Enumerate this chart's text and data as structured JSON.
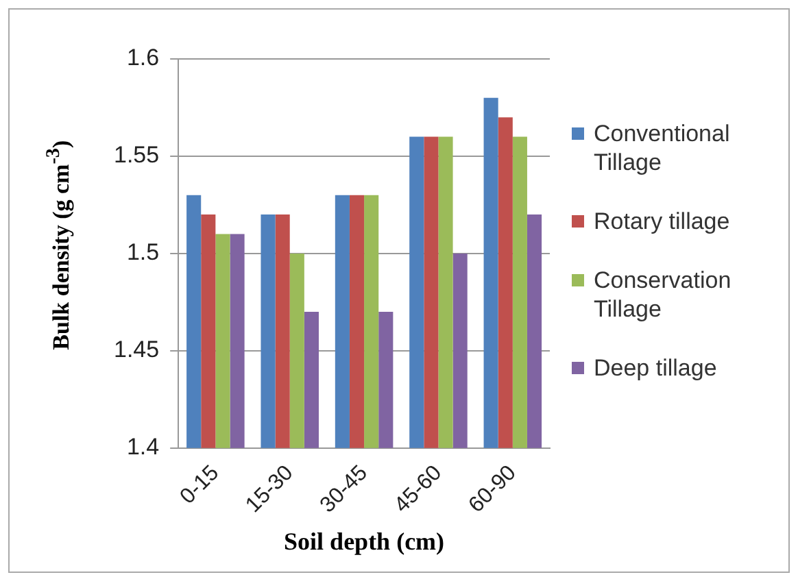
{
  "chart_data": {
    "type": "bar",
    "xlabel": "Soil depth (cm)",
    "ylabel": "Bulk density (g cm$^{-3}$)",
    "categories": [
      "0-15",
      "15-30",
      "30-45",
      "45-60",
      "60-90"
    ],
    "series": [
      {
        "name": "Conventional Tillage",
        "color": "#4f81bd",
        "values": [
          1.53,
          1.52,
          1.53,
          1.56,
          1.58
        ]
      },
      {
        "name": "Rotary tillage",
        "color": "#c0504d",
        "values": [
          1.52,
          1.52,
          1.53,
          1.56,
          1.57
        ]
      },
      {
        "name": "Conservation Tillage",
        "color": "#9bbb59",
        "values": [
          1.51,
          1.5,
          1.53,
          1.56,
          1.56
        ]
      },
      {
        "name": "Deep tillage",
        "color": "#8064a2",
        "values": [
          1.51,
          1.47,
          1.47,
          1.5,
          1.52
        ]
      }
    ],
    "ylim": [
      1.4,
      1.6
    ],
    "yticks": [
      1.4,
      1.45,
      1.5,
      1.55,
      1.6
    ],
    "grid": "y",
    "legend": "right"
  }
}
